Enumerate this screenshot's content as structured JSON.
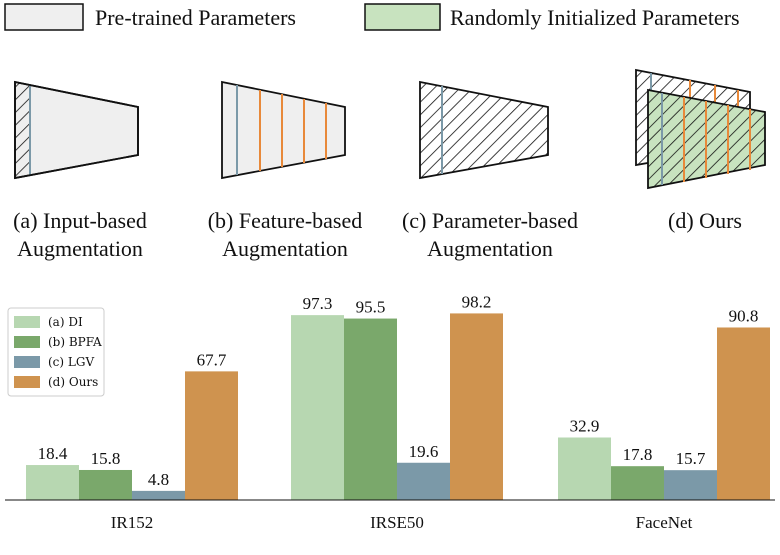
{
  "legend": [
    "Pre-trained Parameters",
    "Randomly Initialized Parameters"
  ],
  "panels": [
    {
      "lines": [
        "(a) Input-based",
        "Augmentation"
      ]
    },
    {
      "lines": [
        "(b) Feature-based",
        "Augmentation"
      ]
    },
    {
      "lines": [
        "(c) Parameter-based",
        "Augmentation"
      ]
    },
    {
      "lines": [
        "(d) Ours"
      ]
    }
  ],
  "chart_data": {
    "type": "bar",
    "categories": [
      "IR152",
      "IRSE50",
      "FaceNet"
    ],
    "series": [
      {
        "name": "(a) DI",
        "color": "#b7d7b1",
        "values": [
          18.4,
          97.3,
          32.9
        ]
      },
      {
        "name": "(b) BPFA",
        "color": "#7aa86b",
        "values": [
          15.8,
          95.5,
          17.8
        ]
      },
      {
        "name": "(c) LGV",
        "color": "#7b99a8",
        "values": [
          4.8,
          19.6,
          15.7
        ]
      },
      {
        "name": "(d) Ours",
        "color": "#cf934f",
        "values": [
          67.7,
          98.2,
          90.8
        ]
      }
    ],
    "legend": "upper left"
  }
}
